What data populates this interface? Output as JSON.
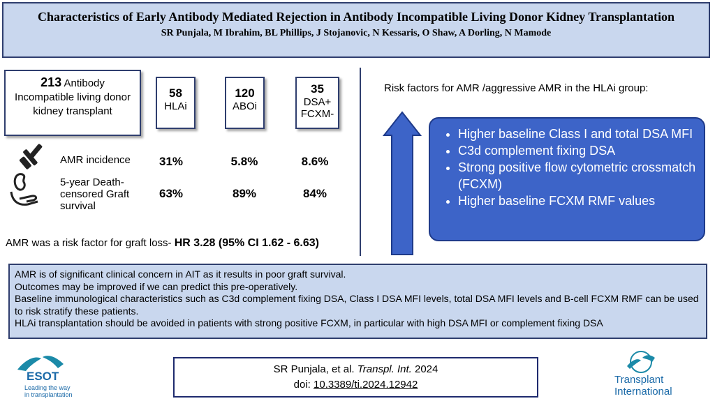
{
  "header": {
    "title": "Characteristics of Early Antibody Mediated Rejection in Antibody Incompatible Living Donor Kidney Transplantation",
    "authors": "SR Punjala, M Ibrahim, BL Phillips, J Stojanovic, N Kessaris, O Shaw, A Dorling, N Mamode"
  },
  "summary": {
    "total_number": "213",
    "total_text": "Antibody Incompatible living donor kidney transplant",
    "groups": [
      {
        "number": "58",
        "label": "HLAi"
      },
      {
        "number": "120",
        "label": "ABOi"
      },
      {
        "number": "35",
        "label": "DSA+ FCXM-"
      }
    ]
  },
  "outcomes": [
    {
      "label": "AMR incidence",
      "values": [
        "31%",
        "5.8%",
        "8.6%"
      ]
    },
    {
      "label": "5-year Death-censored Graft survival",
      "values": [
        "63%",
        "89%",
        "84%"
      ]
    }
  ],
  "risk_statement": {
    "text": "AMR was a risk factor for graft loss- ",
    "hr": "HR 3.28 (95% CI 1.62 - 6.63)"
  },
  "risk_factors": {
    "title": "Risk factors for AMR /aggressive AMR in the HLAi group:",
    "items": [
      "Higher baseline Class I and total DSA MFI",
      "C3d complement fixing DSA",
      "Strong positive flow cytometric crossmatch (FCXM)",
      "Higher baseline FCXM RMF values"
    ]
  },
  "conclusions": [
    "AMR is of significant clinical concern in AIT as it results in poor graft survival.",
    "Outcomes may be improved if we can predict this pre-operatively.",
    "Baseline immunological characteristics such as C3d complement fixing DSA, Class I DSA MFI levels, total DSA MFI levels and B-cell FCXM RMF can be used to risk stratify these patients.",
    "HLAi transplantation should be avoided in patients with strong positive FCXM, in particular with high DSA MFI or complement fixing DSA"
  ],
  "citation": {
    "authors": "SR Punjala, et al. ",
    "journal": "Transpl. Int.",
    "year": " 2024",
    "doi_label": "doi: ",
    "doi": "10.3389/ti.2024.12942"
  },
  "logos": {
    "esot_name": "ESOT",
    "esot_tagline_1": "Leading the way",
    "esot_tagline_2": "in transplantation",
    "ti_line1": "Transplant",
    "ti_line2": "International"
  },
  "colors": {
    "header_bg": "#c9d7ee",
    "border": "#2f3e6e",
    "accent_blue": "#3d64c8",
    "logo_teal": "#1b8aa8"
  }
}
